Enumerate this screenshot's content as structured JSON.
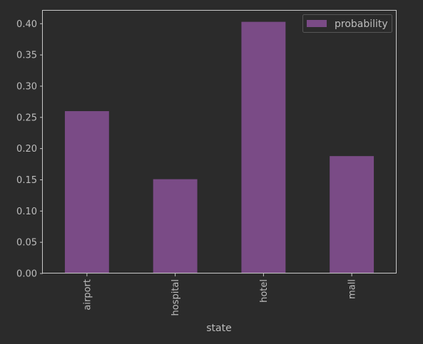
{
  "colors": {
    "background": "#2b2b2b",
    "axes": "#c8c8c8",
    "text": "#bdbdbd",
    "bar": "#7a4b86",
    "legend_bg": "#2b2b2b",
    "legend_border": "#555555"
  },
  "chart_data": {
    "type": "bar",
    "categories": [
      "airport",
      "hospital",
      "hotel",
      "mall"
    ],
    "series": [
      {
        "name": "probability",
        "values": [
          0.26,
          0.151,
          0.403,
          0.188
        ]
      }
    ],
    "title": "",
    "xlabel": "state",
    "ylabel": "",
    "ylim": [
      0,
      0.422
    ],
    "yticks": [
      "0.00",
      "0.05",
      "0.10",
      "0.15",
      "0.20",
      "0.25",
      "0.30",
      "0.35",
      "0.40"
    ],
    "grid": false,
    "legend": "top-right",
    "xtick_rotation": "vertical"
  }
}
